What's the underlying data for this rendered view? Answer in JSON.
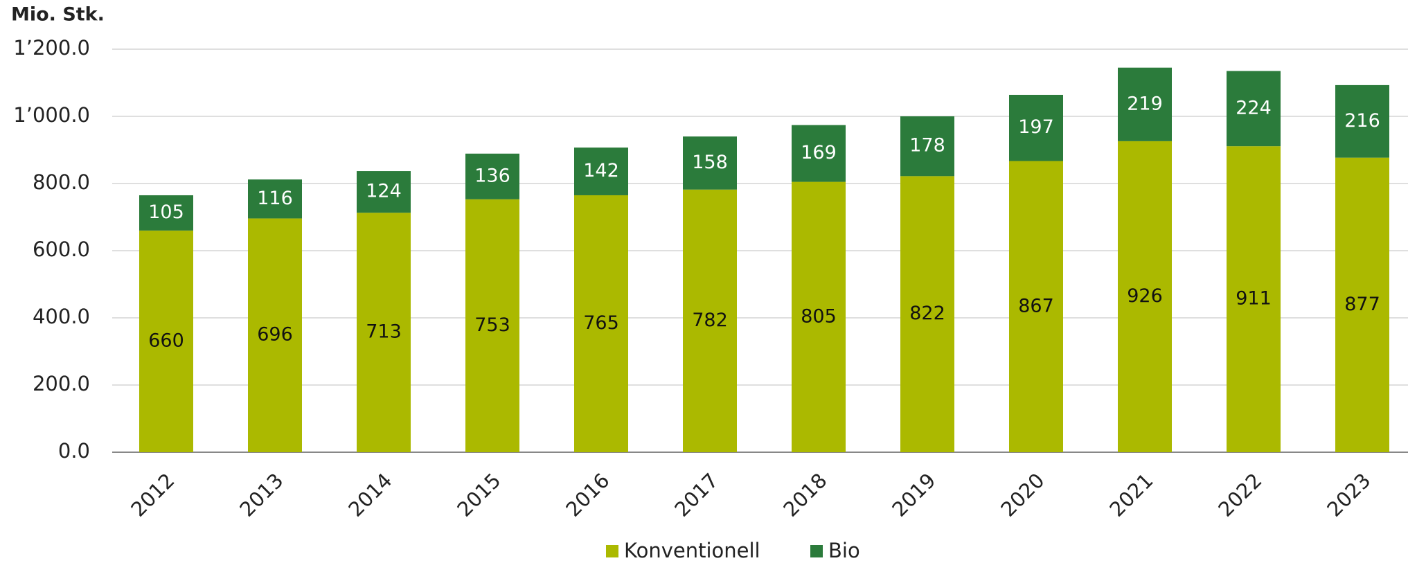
{
  "chart_data": {
    "type": "bar",
    "stacked": true,
    "y_axis_label": "Mio. Stk.",
    "categories": [
      "2012",
      "2013",
      "2014",
      "2015",
      "2016",
      "2017",
      "2018",
      "2019",
      "2020",
      "2021",
      "2022",
      "2023"
    ],
    "series": [
      {
        "name": "Konventionell",
        "color": "#abb900",
        "values": [
          660,
          696,
          713,
          753,
          765,
          782,
          805,
          822,
          867,
          926,
          911,
          877
        ]
      },
      {
        "name": "Bio",
        "color": "#2b7b3b",
        "values": [
          105,
          116,
          124,
          136,
          142,
          158,
          169,
          178,
          197,
          219,
          224,
          216
        ]
      }
    ],
    "ylim": [
      0,
      1200
    ],
    "yticks": [
      {
        "value": 0,
        "label": "0.0"
      },
      {
        "value": 200,
        "label": "200.0"
      },
      {
        "value": 400,
        "label": "400.0"
      },
      {
        "value": 600,
        "label": "600.0"
      },
      {
        "value": 800,
        "label": "800.0"
      },
      {
        "value": 1000,
        "label": "1’000.0"
      },
      {
        "value": 1200,
        "label": "1’200.0"
      }
    ],
    "grid": true,
    "legend": "bottom"
  }
}
